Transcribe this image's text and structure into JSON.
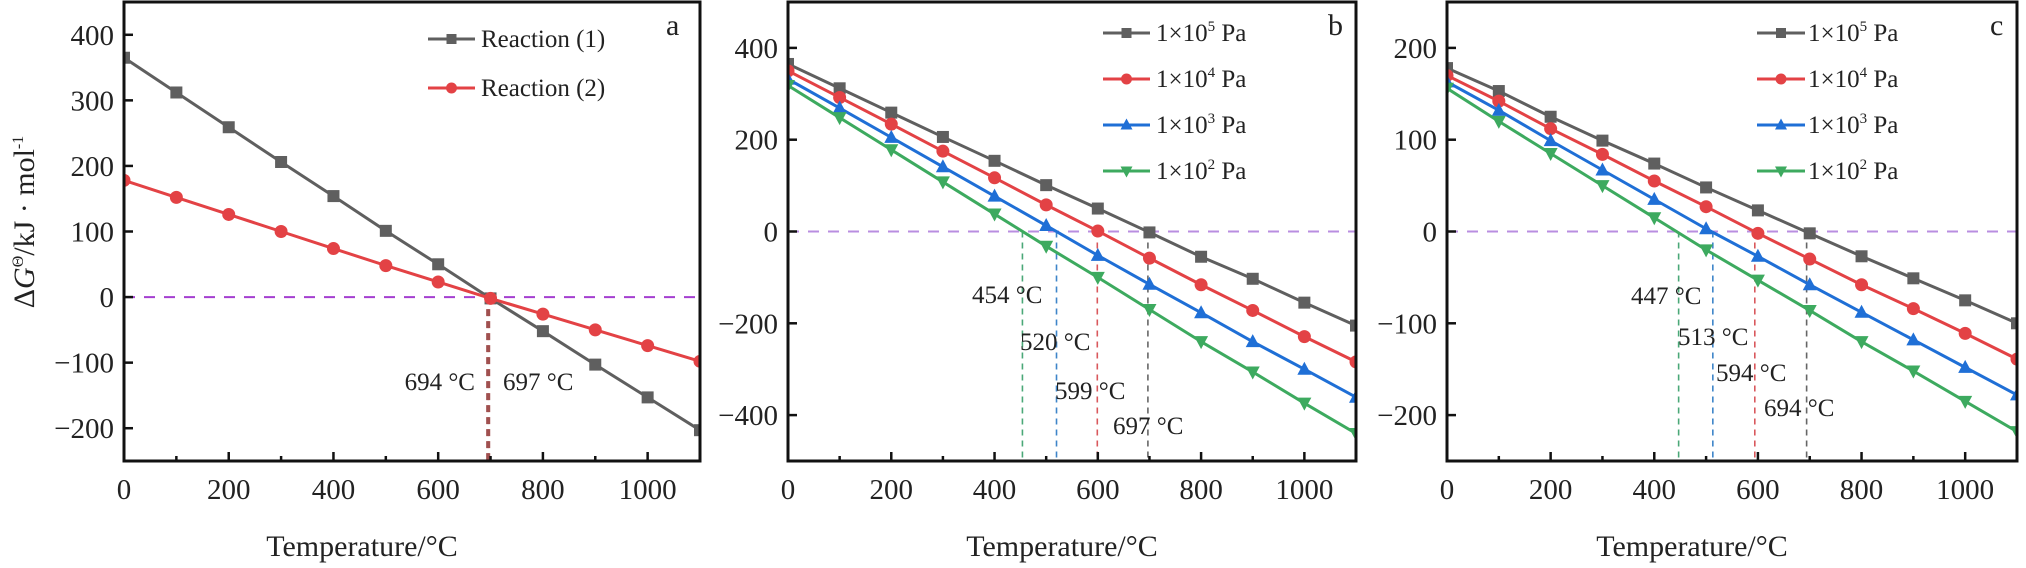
{
  "chart_data": [
    {
      "type": "line",
      "panel_label": "a",
      "xlabel": "Temperature/°C",
      "ylabel": "ΔG^Θ/kJ·mol^-1",
      "ylabel_parts": {
        "delta": "Δ",
        "g": "G",
        "theta": "Θ",
        "unit": "/kJ · mol",
        "exp": "-1"
      },
      "xlim": [
        0,
        1100
      ],
      "ylim": [
        -250,
        450
      ],
      "xticks": [
        0,
        200,
        400,
        600,
        800,
        1000
      ],
      "yticks": [
        -200,
        -100,
        0,
        100,
        200,
        300,
        400
      ],
      "x": [
        0,
        100,
        200,
        300,
        400,
        500,
        600,
        700,
        800,
        900,
        1000,
        1100
      ],
      "legend_position": "top-right",
      "series": [
        {
          "name": "Reaction (1)",
          "marker": "square",
          "color": "#5f5f5f",
          "values": [
            365,
            312,
            259,
            206,
            154,
            101,
            50,
            -2,
            -52,
            -103,
            -153,
            -203
          ]
        },
        {
          "name": "Reaction (2)",
          "marker": "circle",
          "color": "#e34245",
          "values": [
            178,
            152,
            126,
            100,
            74,
            48,
            23,
            -2,
            -26,
            -50,
            -74,
            -98
          ]
        }
      ],
      "zero_line": {
        "y": 0,
        "color": "#a43fd0"
      },
      "vlines": [
        {
          "x": 694,
          "color": "#a0504f",
          "label": "694 °C",
          "label_side": "left"
        },
        {
          "x": 697,
          "color": "#a0504f",
          "label": "697 °C",
          "label_side": "right"
        }
      ]
    },
    {
      "type": "line",
      "panel_label": "b",
      "xlabel": "Temperature/°C",
      "xlim": [
        0,
        1100
      ],
      "ylim": [
        -500,
        500
      ],
      "xticks": [
        0,
        200,
        400,
        600,
        800,
        1000
      ],
      "yticks": [
        -400,
        -200,
        0,
        200,
        400
      ],
      "x": [
        0,
        100,
        200,
        300,
        400,
        500,
        600,
        700,
        800,
        900,
        1000,
        1100
      ],
      "legend_position": "top-right",
      "series": [
        {
          "name": "1×10^5 Pa",
          "base": "1×10",
          "exp": "5",
          "unit": " Pa",
          "marker": "square",
          "color": "#5f5f5f",
          "values": [
            365,
            312,
            259,
            206,
            154,
            101,
            50,
            -2,
            -55,
            -103,
            -155,
            -205
          ]
        },
        {
          "name": "1×10^4 Pa",
          "base": "1×10",
          "exp": "4",
          "unit": " Pa",
          "marker": "circle",
          "color": "#e34245",
          "values": [
            350,
            292,
            234,
            175,
            117,
            58,
            1,
            -58,
            -116,
            -172,
            -229,
            -284
          ]
        },
        {
          "name": "1×10^3 Pa",
          "base": "1×10",
          "exp": "3",
          "unit": " Pa",
          "marker": "triangle-up",
          "color": "#1f6fd6",
          "values": [
            332,
            269,
            205,
            141,
            77,
            13,
            -52,
            -115,
            -177,
            -240,
            -300,
            -361
          ]
        },
        {
          "name": "1×10^2 Pa",
          "base": "1×10",
          "exp": "2",
          "unit": " Pa",
          "marker": "triangle-down",
          "color": "#3daa5f",
          "values": [
            318,
            248,
            178,
            108,
            38,
            -32,
            -100,
            -170,
            -240,
            -306,
            -374,
            -440
          ]
        }
      ],
      "zero_line": {
        "y": 0,
        "color": "#b98ee0"
      },
      "vlines": [
        {
          "x": 454,
          "color": "#4aa878",
          "label": "454 °C"
        },
        {
          "x": 520,
          "color": "#3e85c9",
          "label": "520 °C"
        },
        {
          "x": 599,
          "color": "#d9585c",
          "label": "599 °C"
        },
        {
          "x": 697,
          "color": "#666666",
          "label": "697 °C"
        }
      ]
    },
    {
      "type": "line",
      "panel_label": "c",
      "xlabel": "Temperature/°C",
      "xlim": [
        0,
        1100
      ],
      "ylim": [
        -250,
        250
      ],
      "xticks": [
        0,
        200,
        400,
        600,
        800,
        1000
      ],
      "yticks": [
        -200,
        -100,
        0,
        100,
        200
      ],
      "x": [
        0,
        100,
        200,
        300,
        400,
        500,
        600,
        700,
        800,
        900,
        1000,
        1100
      ],
      "legend_position": "top-right",
      "series": [
        {
          "name": "1×10^5 Pa",
          "base": "1×10",
          "exp": "5",
          "unit": " Pa",
          "marker": "square",
          "color": "#5f5f5f",
          "values": [
            178,
            153,
            125,
            99,
            74,
            48,
            23,
            -2,
            -27,
            -51,
            -75,
            -100
          ]
        },
        {
          "name": "1×10^4 Pa",
          "base": "1×10",
          "exp": "4",
          "unit": " Pa",
          "marker": "circle",
          "color": "#e34245",
          "values": [
            170,
            142,
            112,
            84,
            55,
            27,
            -2,
            -30,
            -58,
            -84,
            -111,
            -139
          ]
        },
        {
          "name": "1×10^3 Pa",
          "base": "1×10",
          "exp": "3",
          "unit": " Pa",
          "marker": "triangle-up",
          "color": "#1f6fd6",
          "values": [
            163,
            132,
            99,
            67,
            35,
            3,
            -27,
            -58,
            -88,
            -118,
            -148,
            -178
          ]
        },
        {
          "name": "1×10^2 Pa",
          "base": "1×10",
          "exp": "2",
          "unit": " Pa",
          "marker": "triangle-down",
          "color": "#3daa5f",
          "values": [
            156,
            120,
            85,
            50,
            15,
            -20,
            -53,
            -86,
            -120,
            -152,
            -185,
            -218
          ]
        }
      ],
      "zero_line": {
        "y": 0,
        "color": "#b98ee0"
      },
      "vlines": [
        {
          "x": 447,
          "color": "#4aa878",
          "label": "447 °C"
        },
        {
          "x": 513,
          "color": "#3e85c9",
          "label": "513 °C"
        },
        {
          "x": 594,
          "color": "#d9585c",
          "label": "594 °C"
        },
        {
          "x": 694,
          "color": "#666666",
          "label": "694 °C"
        }
      ]
    }
  ]
}
